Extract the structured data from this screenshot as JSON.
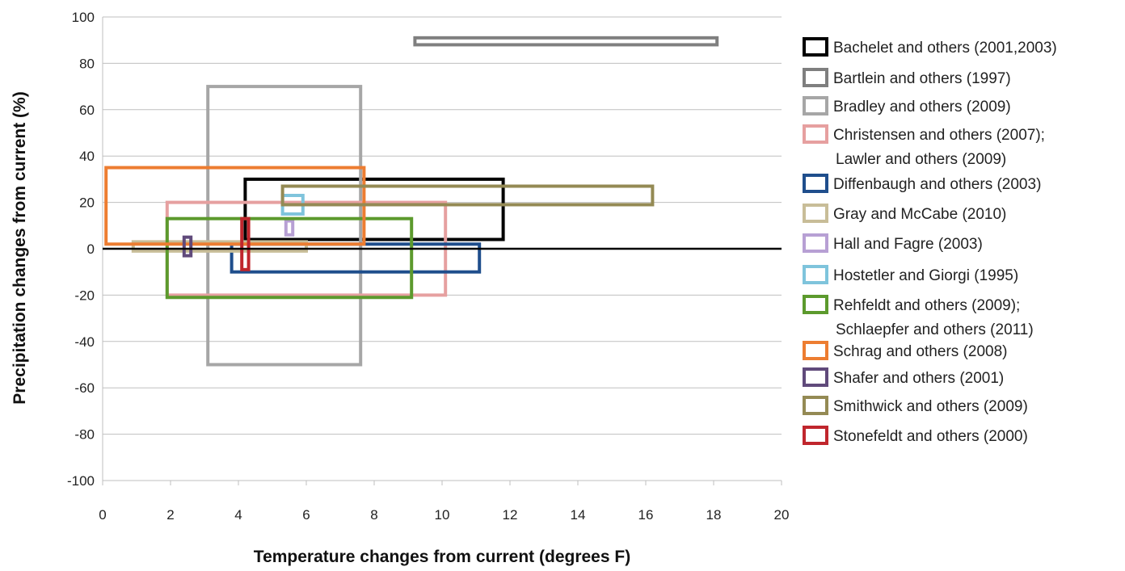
{
  "chart_data": {
    "type": "range-box",
    "title": "",
    "xlabel": "Temperature changes from current (degrees F)",
    "ylabel": "Precipitation changes from current (%)",
    "xlim": [
      0,
      20
    ],
    "ylim": [
      -100,
      100
    ],
    "x_ticks": [
      0,
      2,
      4,
      6,
      8,
      10,
      12,
      14,
      16,
      18,
      20
    ],
    "y_ticks": [
      100,
      80,
      60,
      40,
      20,
      0,
      -20,
      -40,
      -60,
      -80,
      -100
    ],
    "grid": "horizontal",
    "legend_position": "right",
    "series": [
      {
        "name": "Bachelet and others (2001,2003)",
        "color": "#000000",
        "x_range": [
          4.2,
          11.8
        ],
        "y_range": [
          4,
          30
        ]
      },
      {
        "name": "Bartlein and others (1997)",
        "color": "#7f7f7f",
        "x_range": [
          9.2,
          18.1
        ],
        "y_range": [
          88,
          91
        ]
      },
      {
        "name": "Bradley and others (2009)",
        "color": "#a6a6a6",
        "x_range": [
          3.1,
          7.6
        ],
        "y_range": [
          -50,
          70
        ]
      },
      {
        "name": [
          "Christensen and others (2007);",
          "Lawler and others (2009)"
        ],
        "color": "#e6a0a0",
        "x_range": [
          1.9,
          10.1
        ],
        "y_range": [
          -20,
          20
        ]
      },
      {
        "name": "Diffenbaugh and others (2003)",
        "color": "#1f4e8c",
        "x_range": [
          3.8,
          11.1
        ],
        "y_range": [
          -10,
          2
        ]
      },
      {
        "name": "Gray and McCabe (2010)",
        "color": "#c8bd98",
        "x_range": [
          0.9,
          6.0
        ],
        "y_range": [
          -1,
          3
        ]
      },
      {
        "name": "Hall and Fagre (2003)",
        "color": "#b7a0d4",
        "x_range": [
          5.4,
          5.6
        ],
        "y_range": [
          6,
          12
        ]
      },
      {
        "name": "Hostetler and Giorgi (1995)",
        "color": "#7fc4dc",
        "x_range": [
          5.3,
          5.9
        ],
        "y_range": [
          15,
          23
        ]
      },
      {
        "name": [
          "Rehfeldt and others (2009);",
          "Schlaepfer and others (2011)"
        ],
        "color": "#5c9a2d",
        "x_range": [
          1.9,
          9.1
        ],
        "y_range": [
          -21,
          13
        ]
      },
      {
        "name": "Schrag and others (2008)",
        "color": "#ed7d31",
        "x_range": [
          0.1,
          7.7
        ],
        "y_range": [
          2,
          35
        ]
      },
      {
        "name": "Shafer and others (2001)",
        "color": "#604a7b",
        "x_range": [
          2.4,
          2.6
        ],
        "y_range": [
          -3,
          5
        ]
      },
      {
        "name": "Smithwick and others (2009)",
        "color": "#948a54",
        "x_range": [
          5.3,
          16.2
        ],
        "y_range": [
          19,
          27
        ]
      },
      {
        "name": "Stonefeldt and others (2000)",
        "color": "#c0262d",
        "x_range": [
          4.1,
          4.3
        ],
        "y_range": [
          -9,
          13
        ]
      }
    ]
  }
}
